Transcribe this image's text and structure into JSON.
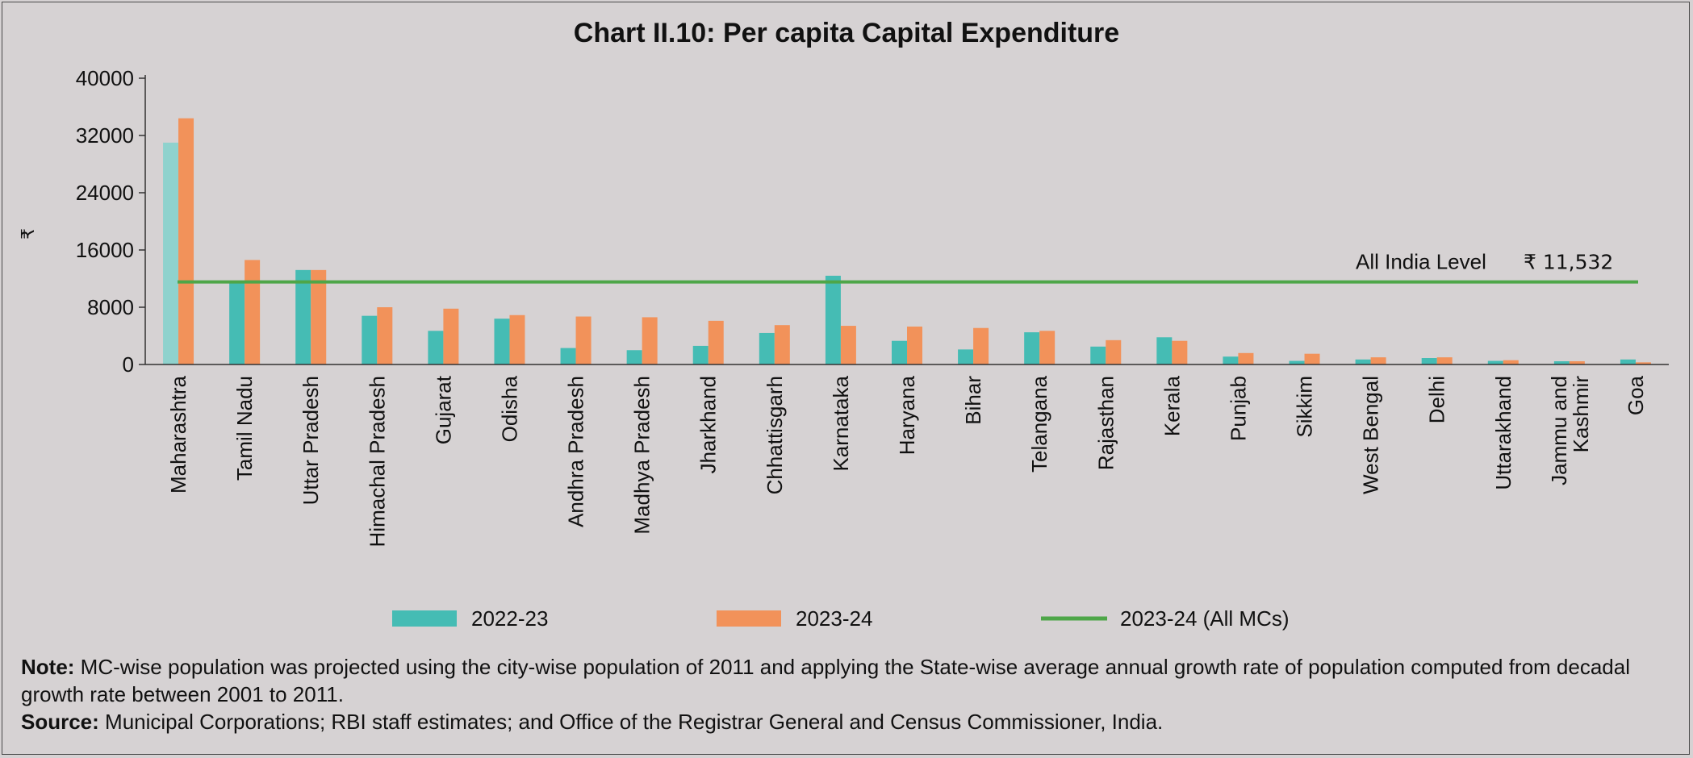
{
  "chart_data": {
    "type": "bar",
    "title": "Chart II.10: Per capita Capital Expenditure",
    "ylabel": "₹",
    "xlabel": "",
    "ylim": [
      0,
      40000
    ],
    "yticks": [
      0,
      8000,
      16000,
      24000,
      32000,
      40000
    ],
    "categories": [
      "Maharashtra",
      "Tamil Nadu",
      "Uttar Pradesh",
      "Himachal Pradesh",
      "Gujarat",
      "Odisha",
      "Andhra Pradesh",
      "Madhya Pradesh",
      "Jharkhand",
      "Chhattisgarh",
      "Karnataka",
      "Haryana",
      "Bihar",
      "Telangana",
      "Rajasthan",
      "Kerala",
      "Punjab",
      "Sikkim",
      "West Bengal",
      "Delhi",
      "Uttarakhand",
      "Jammu and Kashmir",
      "Goa"
    ],
    "series": [
      {
        "name": "2022-23",
        "color": "#45bcb4",
        "values": [
          31000,
          11600,
          13200,
          6800,
          4700,
          6400,
          2300,
          2000,
          2600,
          4400,
          12400,
          3300,
          2100,
          4500,
          2500,
          3800,
          1100,
          500,
          700,
          900,
          500,
          450,
          700
        ]
      },
      {
        "name": "2023-24",
        "color": "#f2925a",
        "values": [
          34400,
          14600,
          13200,
          8000,
          7800,
          6900,
          6700,
          6600,
          6100,
          5500,
          5400,
          5300,
          5100,
          4700,
          3400,
          3300,
          1600,
          1500,
          1000,
          1000,
          600,
          450,
          300
        ]
      }
    ],
    "reference_line": {
      "name": "2023-24 (All MCs)",
      "value": 11532,
      "color": "#4ea648",
      "label": "All India Level",
      "value_label": "₹ 11,532"
    },
    "legend_placement": "bottom",
    "grid": false
  },
  "notes": {
    "note_label": "Note:",
    "note_text": " MC-wise population was projected using the city-wise population of 2011 and applying the State-wise average annual growth rate of population computed from decadal growth rate between 2001 to 2011.",
    "source_label": "Source:",
    "source_text": " Municipal Corporations; RBI staff estimates; and Office of the Registrar General and Census Commissioner, India."
  }
}
